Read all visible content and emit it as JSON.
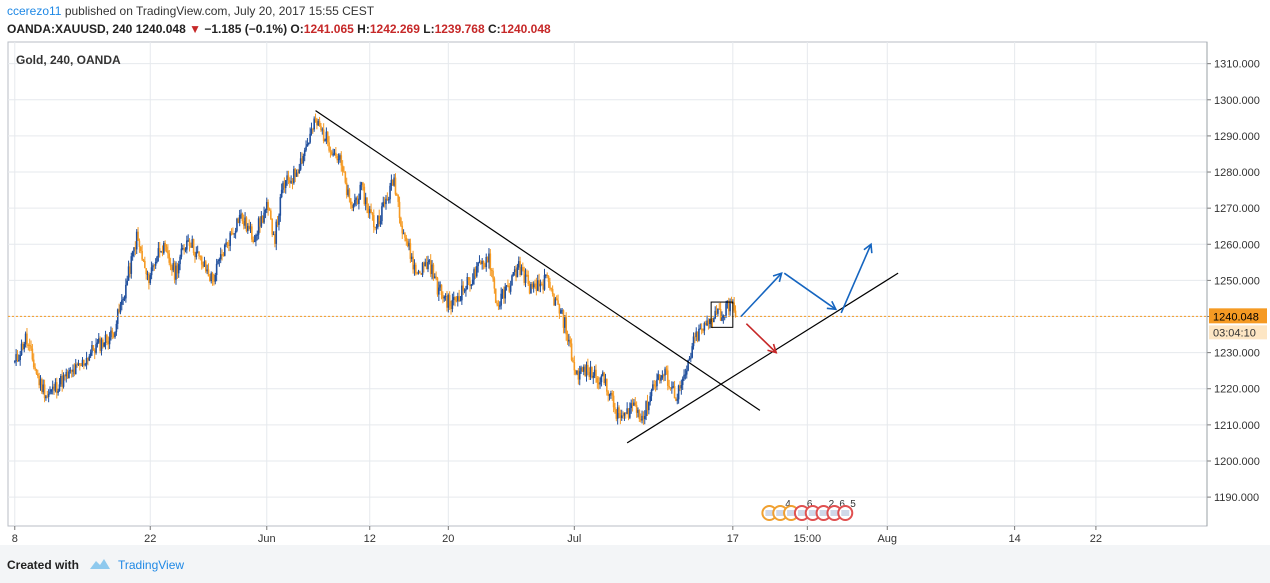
{
  "header": {
    "author": "ccerezo11",
    "published_text": "published on TradingView.com, July 20, 2017 15:55 CEST",
    "symbol": "OANDA:XAUUSD, 240",
    "last": "1240.048",
    "change": "−1.185 (−0.1%)",
    "o_label": "O:",
    "o_value": "1241.065",
    "h_label": "H:",
    "h_value": "1242.269",
    "l_label": "L:",
    "l_value": "1239.768",
    "c_label": "C:",
    "c_value": "1240.048"
  },
  "footer": {
    "created_with": "Created with",
    "brand": "TradingView"
  },
  "chart_data": {
    "type": "candlestick",
    "title": "Gold, 240, OANDA",
    "ylim": [
      1182,
      1316
    ],
    "y_ticks": [
      "1190.000",
      "1200.000",
      "1210.000",
      "1220.000",
      "1230.000",
      "1240.000",
      "1250.000",
      "1260.000",
      "1270.000",
      "1280.000",
      "1290.000",
      "1300.000",
      "1310.000"
    ],
    "x_ticks": [
      {
        "label": "8",
        "x": 0
      },
      {
        "label": "22",
        "x": 100
      },
      {
        "label": "Jun",
        "x": 186
      },
      {
        "label": "12",
        "x": 262
      },
      {
        "label": "20",
        "x": 320
      },
      {
        "label": "Jul",
        "x": 413
      },
      {
        "label": "17",
        "x": 530
      },
      {
        "label": "15:00",
        "x": 585
      },
      {
        "label": "Aug",
        "x": 644
      },
      {
        "label": "14",
        "x": 738
      },
      {
        "label": "22",
        "x": 798
      }
    ],
    "x_range": [
      -5,
      880
    ],
    "price_line": 1240.048,
    "last_price_label": "1240.048",
    "countdown_label": "03:04:10",
    "key_points": [
      [
        0,
        1227
      ],
      [
        8,
        1234
      ],
      [
        18,
        1222
      ],
      [
        24,
        1218
      ],
      [
        34,
        1222
      ],
      [
        48,
        1226
      ],
      [
        58,
        1231
      ],
      [
        72,
        1235
      ],
      [
        80,
        1245
      ],
      [
        90,
        1262
      ],
      [
        98,
        1250
      ],
      [
        108,
        1260
      ],
      [
        118,
        1252
      ],
      [
        128,
        1262
      ],
      [
        136,
        1256
      ],
      [
        146,
        1250
      ],
      [
        154,
        1258
      ],
      [
        166,
        1268
      ],
      [
        176,
        1262
      ],
      [
        186,
        1270
      ],
      [
        192,
        1262
      ],
      [
        198,
        1276
      ],
      [
        206,
        1279
      ],
      [
        212,
        1284
      ],
      [
        222,
        1294
      ],
      [
        232,
        1288
      ],
      [
        240,
        1283
      ],
      [
        248,
        1270
      ],
      [
        256,
        1275
      ],
      [
        266,
        1265
      ],
      [
        274,
        1272
      ],
      [
        280,
        1278
      ],
      [
        286,
        1265
      ],
      [
        296,
        1252
      ],
      [
        306,
        1255
      ],
      [
        312,
        1248
      ],
      [
        322,
        1243
      ],
      [
        330,
        1247
      ],
      [
        340,
        1252
      ],
      [
        350,
        1257
      ],
      [
        356,
        1243
      ],
      [
        364,
        1248
      ],
      [
        372,
        1254
      ],
      [
        382,
        1247
      ],
      [
        392,
        1250
      ],
      [
        406,
        1238
      ],
      [
        414,
        1224
      ],
      [
        420,
        1225
      ],
      [
        428,
        1224
      ],
      [
        436,
        1222
      ],
      [
        444,
        1213
      ],
      [
        450,
        1212
      ],
      [
        456,
        1216
      ],
      [
        464,
        1212
      ],
      [
        472,
        1222
      ],
      [
        480,
        1224
      ],
      [
        488,
        1218
      ],
      [
        494,
        1222
      ],
      [
        502,
        1234
      ],
      [
        512,
        1238
      ],
      [
        518,
        1242
      ],
      [
        522,
        1240
      ],
      [
        528,
        1244
      ],
      [
        532,
        1240
      ]
    ],
    "trendlines": [
      {
        "from": [
          222,
          1297
        ],
        "to": [
          550,
          1214
        ],
        "color": "#000000"
      },
      {
        "from": [
          452,
          1205
        ],
        "to": [
          652,
          1252
        ],
        "color": "#000000"
      }
    ],
    "annotations": [
      {
        "type": "arrow",
        "color": "#1565c0",
        "points": [
          [
            536,
            1240
          ],
          [
            566,
            1252
          ],
          [
            568,
            1252
          ],
          [
            606,
            1242
          ],
          [
            610,
            1241
          ],
          [
            632,
            1260
          ]
        ]
      },
      {
        "type": "arrow",
        "color": "#c62828",
        "points": [
          [
            540,
            1238
          ],
          [
            562,
            1230
          ]
        ]
      },
      {
        "type": "box",
        "color": "#000000",
        "from": [
          514,
          1244
        ],
        "to": [
          530,
          1237
        ]
      }
    ],
    "event_markers": [
      {
        "x": 557,
        "label": "",
        "color": "#f0a030"
      },
      {
        "x": 565,
        "label": "4",
        "color": "#f0a030"
      },
      {
        "x": 573,
        "label": "",
        "color": "#f0a030"
      },
      {
        "x": 581,
        "label": "6",
        "color": "#e05050"
      },
      {
        "x": 589,
        "label": "",
        "color": "#e05050"
      },
      {
        "x": 597,
        "label": "2",
        "color": "#e05050"
      },
      {
        "x": 605,
        "label": "6",
        "color": "#e05050"
      },
      {
        "x": 613,
        "label": "5",
        "color": "#e05050"
      }
    ],
    "colors": {
      "up": "#1f4e9c",
      "down": "#f59a23",
      "price_line": "#f59a23",
      "grid": "#e6e9ed"
    }
  }
}
